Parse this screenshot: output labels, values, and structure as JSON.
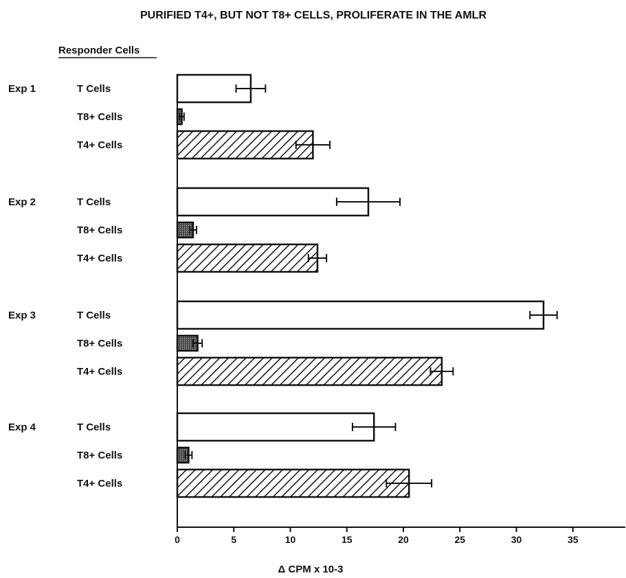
{
  "chart_data": {
    "type": "bar",
    "orientation": "horizontal",
    "title": "PURIFIED T4+, BUT NOT T8+ CELLS, PROLIFERATE IN THE AMLR",
    "ylabel": "Responder Cells",
    "xlabel": "Δ CPM x 10-3",
    "xlim": [
      0,
      39
    ],
    "xticks": [
      0,
      5,
      10,
      15,
      20,
      25,
      30,
      35
    ],
    "grid": false,
    "legend": "none",
    "groups": [
      {
        "name": "Exp 1",
        "bars": [
          {
            "label": "T Cells",
            "value": 6.5,
            "error": 1.3,
            "pattern": "open"
          },
          {
            "label": "T8+ Cells",
            "value": 0.4,
            "error": 0.2,
            "pattern": "dotted"
          },
          {
            "label": "T4+ Cells",
            "value": 12.0,
            "error": 1.5,
            "pattern": "hatched"
          }
        ]
      },
      {
        "name": "Exp 2",
        "bars": [
          {
            "label": "T Cells",
            "value": 16.9,
            "error": 2.8,
            "pattern": "open"
          },
          {
            "label": "T8+ Cells",
            "value": 1.4,
            "error": 0.3,
            "pattern": "dotted"
          },
          {
            "label": "T4+ Cells",
            "value": 12.4,
            "error": 0.8,
            "pattern": "hatched"
          }
        ]
      },
      {
        "name": "Exp 3",
        "bars": [
          {
            "label": "T Cells",
            "value": 32.4,
            "error": 1.2,
            "pattern": "open"
          },
          {
            "label": "T8+ Cells",
            "value": 1.8,
            "error": 0.4,
            "pattern": "dotted"
          },
          {
            "label": "T4+ Cells",
            "value": 23.4,
            "error": 1.0,
            "pattern": "hatched"
          }
        ]
      },
      {
        "name": "Exp 4",
        "bars": [
          {
            "label": "T Cells",
            "value": 17.4,
            "error": 1.9,
            "pattern": "open"
          },
          {
            "label": "T8+ Cells",
            "value": 1.0,
            "error": 0.3,
            "pattern": "dotted"
          },
          {
            "label": "T4+ Cells",
            "value": 20.5,
            "error": 2.0,
            "pattern": "hatched"
          }
        ]
      }
    ]
  },
  "colors": {
    "ink": "#111111",
    "dotted_fill": "#555555",
    "background": "#ffffff"
  }
}
